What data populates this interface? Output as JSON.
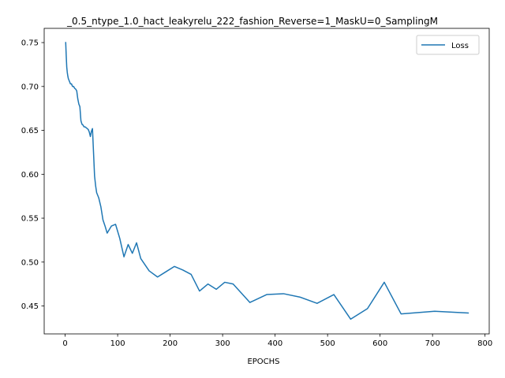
{
  "chart_data": {
    "type": "line",
    "title": "_0.5_ntype_1.0_hact_leakyrelu_222_fashion_Reverse=1_MaskU=0_SamplingM",
    "xlabel": "EPOCHS",
    "ylabel": "",
    "xlim": [
      -40,
      808
    ],
    "ylim": [
      0.4182,
      0.7662
    ],
    "xticks": [
      0,
      100,
      200,
      300,
      400,
      500,
      600,
      700,
      800
    ],
    "yticks": [
      0.45,
      0.5,
      0.55,
      0.6,
      0.65,
      0.7,
      0.75
    ],
    "ytick_labels": [
      "0.45",
      "0.50",
      "0.55",
      "0.60",
      "0.65",
      "0.70",
      "0.75"
    ],
    "grid": false,
    "legend_position": "upper right",
    "series": [
      {
        "name": "Loss",
        "color": "#1f77b4",
        "x": [
          1,
          2,
          3,
          4,
          5,
          6,
          8,
          10,
          12,
          14,
          16,
          18,
          20,
          22,
          24,
          26,
          28,
          30,
          32,
          34,
          36,
          38,
          40,
          42,
          44,
          46,
          48,
          50,
          52,
          54,
          56,
          58,
          60,
          64,
          68,
          72,
          76,
          80,
          88,
          96,
          104,
          112,
          120,
          128,
          136,
          144,
          160,
          176,
          192,
          208,
          224,
          240,
          256,
          272,
          288,
          304,
          320,
          352,
          384,
          416,
          448,
          480,
          512,
          544,
          576,
          608,
          640,
          704,
          768
        ],
        "y": [
          0.75,
          0.735,
          0.722,
          0.716,
          0.712,
          0.709,
          0.706,
          0.703,
          0.703,
          0.7,
          0.7,
          0.698,
          0.697,
          0.695,
          0.686,
          0.68,
          0.677,
          0.661,
          0.657,
          0.656,
          0.654,
          0.654,
          0.653,
          0.652,
          0.651,
          0.648,
          0.643,
          0.649,
          0.652,
          0.625,
          0.598,
          0.587,
          0.579,
          0.573,
          0.563,
          0.548,
          0.541,
          0.533,
          0.541,
          0.543,
          0.527,
          0.506,
          0.52,
          0.51,
          0.522,
          0.504,
          0.49,
          0.483,
          0.489,
          0.495,
          0.491,
          0.486,
          0.467,
          0.475,
          0.469,
          0.477,
          0.475,
          0.454,
          0.463,
          0.464,
          0.46,
          0.453,
          0.463,
          0.435,
          0.447,
          0.477,
          0.441,
          0.444,
          0.442
        ]
      }
    ]
  }
}
